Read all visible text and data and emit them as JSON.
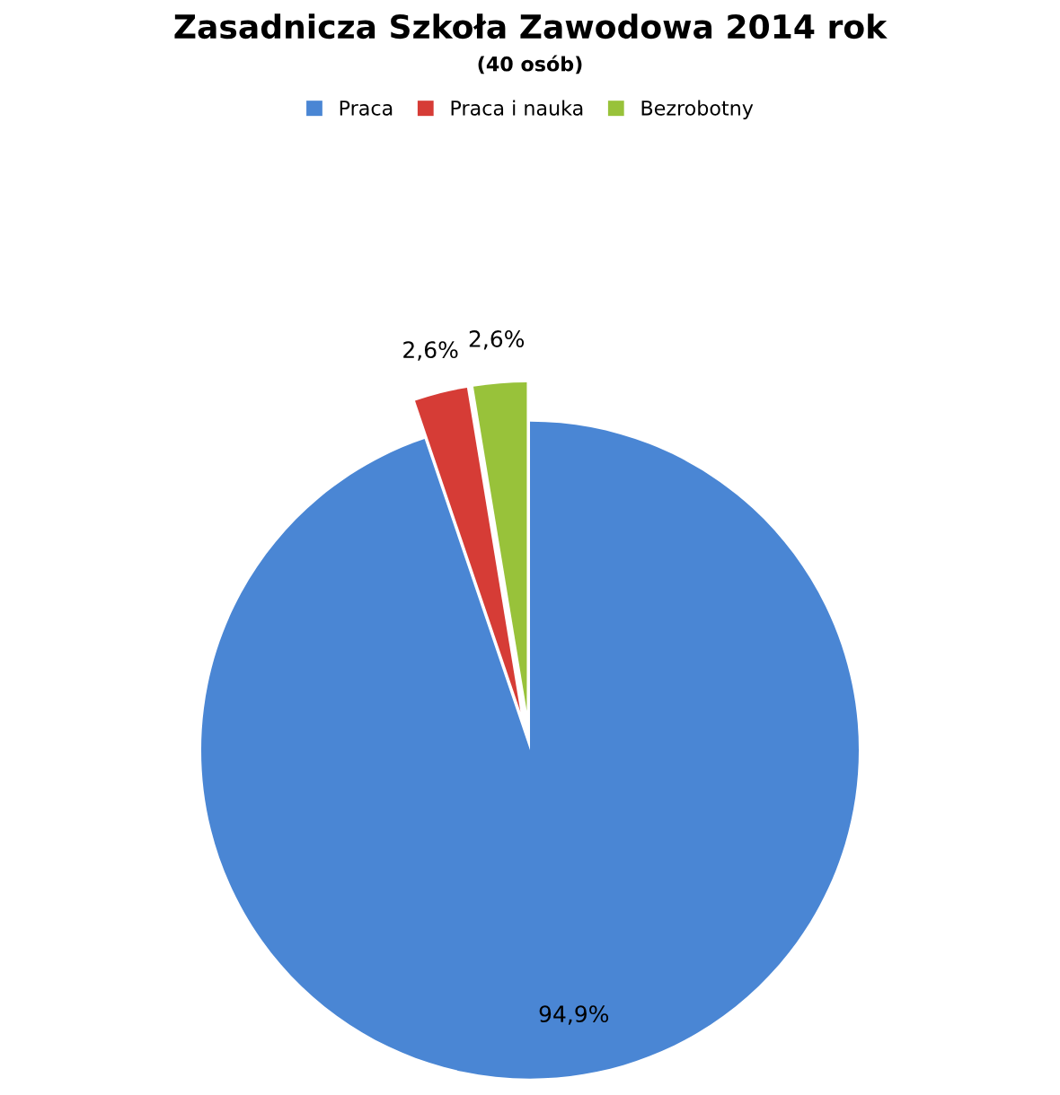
{
  "chart_data": {
    "type": "pie",
    "title": "Zasadnicza Szkoła Zawodowa 2014 rok",
    "subtitle": "(40 osób)",
    "categories": [
      "Praca",
      "Praca i nauka",
      "Bezrobotny"
    ],
    "values": [
      94.9,
      2.6,
      2.6
    ],
    "colors": [
      "#4a86d4",
      "#d63c36",
      "#98c23a"
    ],
    "value_labels": [
      "94,9%",
      "2,6%",
      "2,6%"
    ],
    "legend": "top"
  }
}
